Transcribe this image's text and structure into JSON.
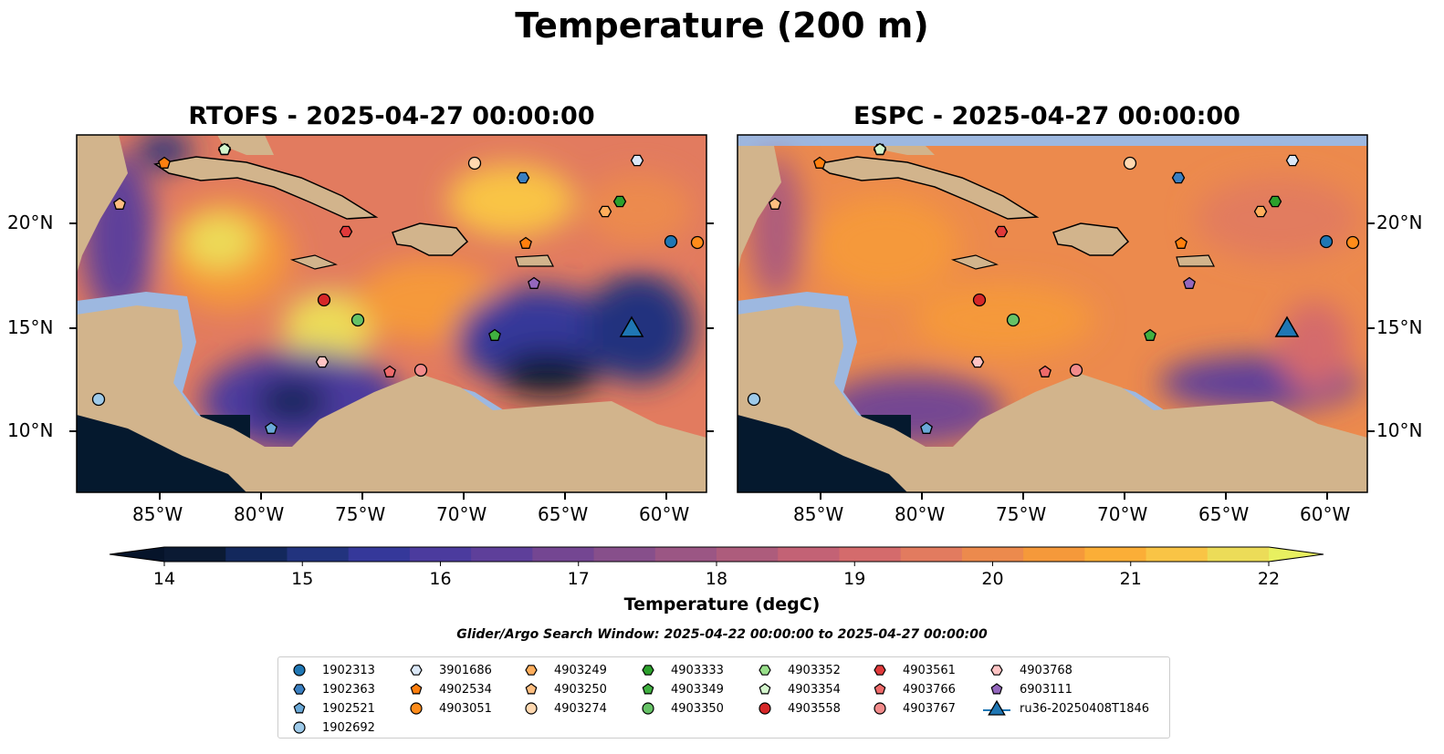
{
  "title": "Temperature (200 m)",
  "panels": [
    {
      "title": "RTOFS - 2025-04-27 00:00:00"
    },
    {
      "title": "ESPC - 2025-04-27 00:00:00"
    }
  ],
  "axes": {
    "lat_ticks": [
      "20°N",
      "15°N",
      "10°N"
    ],
    "lon_ticks": [
      "85°W",
      "80°W",
      "75°W",
      "70°W",
      "65°W",
      "60°W"
    ]
  },
  "colorbar": {
    "label": "Temperature (degC)",
    "min": 14,
    "max": 22,
    "step": 0.5,
    "tick_labels": [
      "14",
      "15",
      "16",
      "17",
      "18",
      "19",
      "20",
      "21",
      "22"
    ],
    "colors": [
      "#0b1a33",
      "#13285c",
      "#22337e",
      "#35389a",
      "#4b3b9e",
      "#5e3f9a",
      "#744692",
      "#874f8b",
      "#9b5684",
      "#ad5c7c",
      "#c36275",
      "#d46b6c",
      "#e27b5f",
      "#ec8a4d",
      "#f5993a",
      "#fbae37",
      "#f9c445",
      "#ecdc58"
    ],
    "extend_low_color": "#06142a",
    "extend_high_color": "#e8f060"
  },
  "search_window": "Glider/Argo Search Window: 2025-04-22 00:00:00 to 2025-04-27 00:00:00",
  "colors": {
    "land": "#d2b48c",
    "shelf": "#9db8e0",
    "deep": "#05192e",
    "warm": "#f2a23c",
    "cool": "#4b3b9e"
  },
  "legend": [
    {
      "label": "1902313",
      "marker": "circle",
      "color": "#1f77b4"
    },
    {
      "label": "1902363",
      "marker": "hexagon",
      "color": "#3a7fc1"
    },
    {
      "label": "1902521",
      "marker": "pentagon",
      "color": "#6aa9d8"
    },
    {
      "label": "1902692",
      "marker": "circle",
      "color": "#9ecae9"
    },
    {
      "label": "3901686",
      "marker": "hexagon",
      "color": "#dbe8f8"
    },
    {
      "label": "4902534",
      "marker": "pentagon",
      "color": "#ff7f0e"
    },
    {
      "label": "4903051",
      "marker": "circle",
      "color": "#ff8c1a"
    },
    {
      "label": "4903249",
      "marker": "hexagon",
      "color": "#ffae5c"
    },
    {
      "label": "4903250",
      "marker": "pentagon",
      "color": "#ffbe80"
    },
    {
      "label": "4903274",
      "marker": "circle",
      "color": "#ffd8b0"
    },
    {
      "label": "4903333",
      "marker": "hexagon",
      "color": "#2ca02c"
    },
    {
      "label": "4903349",
      "marker": "pentagon",
      "color": "#40b040"
    },
    {
      "label": "4903350",
      "marker": "circle",
      "color": "#66c266"
    },
    {
      "label": "4903352",
      "marker": "hexagon",
      "color": "#98df8a"
    },
    {
      "label": "4903354",
      "marker": "pentagon",
      "color": "#d3f5cc"
    },
    {
      "label": "4903558",
      "marker": "circle",
      "color": "#d62728"
    },
    {
      "label": "4903561",
      "marker": "hexagon",
      "color": "#e0393a"
    },
    {
      "label": "4903766",
      "marker": "pentagon",
      "color": "#ee6a6a"
    },
    {
      "label": "4903767",
      "marker": "circle",
      "color": "#f28b8b"
    },
    {
      "label": "4903768",
      "marker": "hexagon",
      "color": "#ffc4c4"
    },
    {
      "label": "6903111",
      "marker": "pentagon",
      "color": "#9467bd"
    },
    {
      "label": "ru36-20250408T1846",
      "marker": "triangle",
      "color": "#1f77b4"
    }
  ]
}
